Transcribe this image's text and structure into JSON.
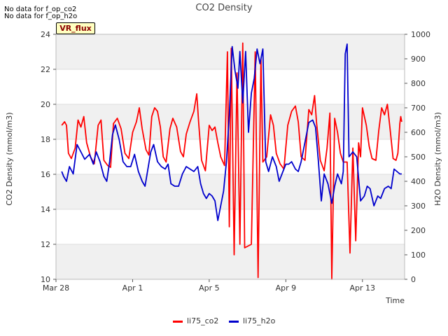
{
  "notes": [
    "No data for f_op_co2",
    "No data for f_op_h2o"
  ],
  "badge": "VR_flux",
  "colors": {
    "co2": "#ff0000",
    "h2o": "#0000cc",
    "band": "#f0f0f0",
    "grid": "#dcdcdc"
  },
  "chart_data": {
    "type": "line",
    "title": "CO2 Density",
    "xlabel": "Time",
    "ylabel": "CO2 Density (mmol/m3)",
    "y2label": "H2O Density (mmol/m3)",
    "xlim": [
      0,
      18.2
    ],
    "ylim": [
      10,
      24
    ],
    "y2lim": [
      0,
      1000
    ],
    "x_ticks": [
      {
        "v": 0,
        "label": "Mar 28"
      },
      {
        "v": 4,
        "label": "Apr 1"
      },
      {
        "v": 8,
        "label": "Apr 5"
      },
      {
        "v": 12,
        "label": "Apr 9"
      },
      {
        "v": 16,
        "label": "Apr 13"
      }
    ],
    "y_ticks": [
      10,
      12,
      14,
      16,
      18,
      20,
      22,
      24
    ],
    "y2_ticks": [
      0,
      100,
      200,
      300,
      400,
      500,
      600,
      700,
      800,
      900,
      1000
    ],
    "series": [
      {
        "name": "li75_co2",
        "axis": "left",
        "color": "#ff0000",
        "points": [
          [
            0.3,
            18.8
          ],
          [
            0.45,
            19.0
          ],
          [
            0.55,
            18.8
          ],
          [
            0.65,
            17.2
          ],
          [
            0.8,
            16.9
          ],
          [
            1.0,
            17.5
          ],
          [
            1.15,
            19.1
          ],
          [
            1.3,
            18.7
          ],
          [
            1.45,
            19.3
          ],
          [
            1.6,
            17.8
          ],
          [
            1.8,
            17.0
          ],
          [
            2.0,
            16.6
          ],
          [
            2.2,
            18.8
          ],
          [
            2.35,
            19.1
          ],
          [
            2.5,
            16.8
          ],
          [
            2.7,
            16.5
          ],
          [
            2.85,
            16.4
          ],
          [
            3.0,
            18.9
          ],
          [
            3.2,
            19.2
          ],
          [
            3.4,
            18.6
          ],
          [
            3.6,
            17.2
          ],
          [
            3.8,
            16.9
          ],
          [
            4.0,
            18.4
          ],
          [
            4.2,
            19.0
          ],
          [
            4.35,
            19.8
          ],
          [
            4.5,
            18.6
          ],
          [
            4.7,
            17.4
          ],
          [
            4.85,
            17.1
          ],
          [
            5.0,
            19.3
          ],
          [
            5.15,
            19.8
          ],
          [
            5.3,
            19.6
          ],
          [
            5.45,
            18.7
          ],
          [
            5.6,
            17.0
          ],
          [
            5.75,
            16.7
          ],
          [
            5.95,
            18.6
          ],
          [
            6.1,
            19.2
          ],
          [
            6.3,
            18.7
          ],
          [
            6.5,
            17.3
          ],
          [
            6.65,
            17.0
          ],
          [
            6.8,
            18.3
          ],
          [
            7.0,
            19.0
          ],
          [
            7.2,
            19.6
          ],
          [
            7.35,
            20.6
          ],
          [
            7.45,
            18.9
          ],
          [
            7.6,
            16.8
          ],
          [
            7.8,
            16.2
          ],
          [
            8.0,
            18.8
          ],
          [
            8.15,
            18.5
          ],
          [
            8.3,
            18.7
          ],
          [
            8.45,
            17.8
          ],
          [
            8.6,
            17.0
          ],
          [
            8.8,
            16.5
          ],
          [
            8.95,
            23.0
          ],
          [
            9.05,
            13.0
          ],
          [
            9.15,
            23.2
          ],
          [
            9.3,
            11.4
          ],
          [
            9.45,
            21.8
          ],
          [
            9.6,
            12.0
          ],
          [
            9.75,
            23.5
          ],
          [
            9.85,
            11.8
          ],
          [
            10.2,
            12.0
          ],
          [
            10.4,
            23.0
          ],
          [
            10.55,
            10.1
          ],
          [
            10.7,
            22.6
          ],
          [
            10.8,
            16.7
          ],
          [
            11.0,
            17.0
          ],
          [
            11.2,
            19.4
          ],
          [
            11.35,
            18.8
          ],
          [
            11.5,
            17.2
          ],
          [
            11.7,
            16.6
          ],
          [
            11.9,
            16.3
          ],
          [
            12.1,
            18.8
          ],
          [
            12.3,
            19.6
          ],
          [
            12.5,
            19.9
          ],
          [
            12.65,
            19.0
          ],
          [
            12.8,
            17.0
          ],
          [
            13.0,
            16.8
          ],
          [
            13.2,
            19.7
          ],
          [
            13.35,
            19.4
          ],
          [
            13.5,
            20.5
          ],
          [
            13.6,
            19.0
          ],
          [
            13.8,
            16.8
          ],
          [
            14.0,
            16.2
          ],
          [
            14.15,
            17.5
          ],
          [
            14.3,
            19.5
          ],
          [
            14.4,
            10.0
          ],
          [
            14.55,
            19.2
          ],
          [
            14.7,
            18.4
          ],
          [
            14.85,
            17.2
          ],
          [
            15.0,
            16.7
          ],
          [
            15.2,
            16.7
          ],
          [
            15.35,
            11.5
          ],
          [
            15.5,
            17.5
          ],
          [
            15.65,
            12.2
          ],
          [
            15.8,
            17.8
          ],
          [
            15.9,
            17.0
          ],
          [
            16.0,
            19.8
          ],
          [
            16.2,
            18.8
          ],
          [
            16.35,
            17.6
          ],
          [
            16.5,
            16.9
          ],
          [
            16.7,
            16.8
          ],
          [
            16.85,
            18.5
          ],
          [
            17.0,
            19.8
          ],
          [
            17.15,
            19.4
          ],
          [
            17.3,
            20.0
          ],
          [
            17.45,
            18.5
          ],
          [
            17.6,
            16.9
          ],
          [
            17.75,
            16.8
          ],
          [
            17.85,
            17.2
          ],
          [
            17.95,
            18.9
          ],
          [
            18.0,
            19.3
          ],
          [
            18.05,
            19.0
          ]
        ]
      },
      {
        "name": "li75_h2o",
        "axis": "right",
        "color": "#0000cc",
        "points": [
          [
            0.3,
            440
          ],
          [
            0.4,
            420
          ],
          [
            0.55,
            400
          ],
          [
            0.7,
            460
          ],
          [
            0.9,
            430
          ],
          [
            1.1,
            550
          ],
          [
            1.3,
            520
          ],
          [
            1.5,
            490
          ],
          [
            1.75,
            510
          ],
          [
            1.95,
            470
          ],
          [
            2.1,
            520
          ],
          [
            2.3,
            480
          ],
          [
            2.5,
            420
          ],
          [
            2.65,
            400
          ],
          [
            2.8,
            480
          ],
          [
            2.95,
            590
          ],
          [
            3.1,
            630
          ],
          [
            3.3,
            570
          ],
          [
            3.5,
            480
          ],
          [
            3.7,
            460
          ],
          [
            3.9,
            460
          ],
          [
            4.1,
            510
          ],
          [
            4.3,
            440
          ],
          [
            4.5,
            400
          ],
          [
            4.65,
            380
          ],
          [
            4.8,
            450
          ],
          [
            4.95,
            520
          ],
          [
            5.1,
            550
          ],
          [
            5.3,
            480
          ],
          [
            5.5,
            460
          ],
          [
            5.7,
            450
          ],
          [
            5.85,
            470
          ],
          [
            6.0,
            390
          ],
          [
            6.2,
            380
          ],
          [
            6.4,
            380
          ],
          [
            6.6,
            430
          ],
          [
            6.8,
            460
          ],
          [
            7.0,
            450
          ],
          [
            7.2,
            440
          ],
          [
            7.4,
            460
          ],
          [
            7.55,
            390
          ],
          [
            7.7,
            350
          ],
          [
            7.85,
            330
          ],
          [
            8.0,
            350
          ],
          [
            8.15,
            340
          ],
          [
            8.3,
            320
          ],
          [
            8.45,
            240
          ],
          [
            8.6,
            300
          ],
          [
            8.75,
            360
          ],
          [
            8.9,
            480
          ],
          [
            9.05,
            670
          ],
          [
            9.2,
            950
          ],
          [
            9.35,
            850
          ],
          [
            9.5,
            780
          ],
          [
            9.6,
            930
          ],
          [
            9.75,
            720
          ],
          [
            9.9,
            930
          ],
          [
            10.05,
            600
          ],
          [
            10.2,
            760
          ],
          [
            10.35,
            820
          ],
          [
            10.5,
            940
          ],
          [
            10.65,
            880
          ],
          [
            10.8,
            940
          ],
          [
            10.95,
            480
          ],
          [
            11.1,
            440
          ],
          [
            11.3,
            500
          ],
          [
            11.5,
            460
          ],
          [
            11.65,
            400
          ],
          [
            11.85,
            440
          ],
          [
            12.0,
            470
          ],
          [
            12.15,
            470
          ],
          [
            12.3,
            480
          ],
          [
            12.5,
            450
          ],
          [
            12.65,
            440
          ],
          [
            12.8,
            480
          ],
          [
            13.0,
            560
          ],
          [
            13.2,
            640
          ],
          [
            13.4,
            650
          ],
          [
            13.55,
            620
          ],
          [
            13.7,
            480
          ],
          [
            13.85,
            320
          ],
          [
            14.0,
            430
          ],
          [
            14.2,
            390
          ],
          [
            14.4,
            310
          ],
          [
            14.55,
            380
          ],
          [
            14.7,
            430
          ],
          [
            14.9,
            390
          ],
          [
            15.0,
            440
          ],
          [
            15.1,
            920
          ],
          [
            15.2,
            960
          ],
          [
            15.3,
            500
          ],
          [
            15.5,
            520
          ],
          [
            15.7,
            500
          ],
          [
            15.9,
            320
          ],
          [
            16.1,
            340
          ],
          [
            16.25,
            380
          ],
          [
            16.4,
            370
          ],
          [
            16.6,
            300
          ],
          [
            16.8,
            340
          ],
          [
            16.95,
            330
          ],
          [
            17.15,
            370
          ],
          [
            17.35,
            380
          ],
          [
            17.5,
            370
          ],
          [
            17.65,
            450
          ],
          [
            17.8,
            440
          ],
          [
            17.95,
            430
          ],
          [
            18.05,
            430
          ]
        ]
      }
    ]
  }
}
